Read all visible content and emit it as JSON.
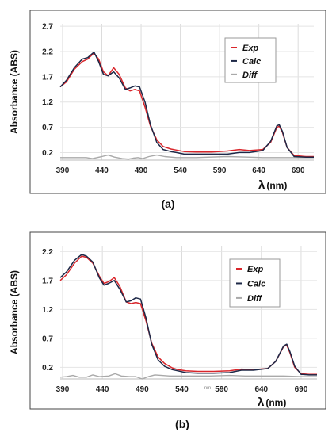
{
  "chart_data": [
    {
      "type": "line",
      "panel_label": "(a)",
      "ylabel": "Absorbance  (ABS)",
      "xlabel_symbol": "λ",
      "xlabel_unit": "(nm)",
      "x_ticks": [
        390,
        440,
        490,
        540,
        590,
        640,
        690
      ],
      "y_ticks": [
        "0.2",
        "0.7",
        "1.2",
        "1.7",
        "2.2",
        "2.7"
      ],
      "xlim": [
        387,
        710
      ],
      "ylim": [
        0.05,
        2.75
      ],
      "grid": true,
      "legend_position": "top-right",
      "extra_axis_text": "",
      "series": [
        {
          "name": "Exp",
          "color": "#d9262b",
          "points": [
            [
              387,
              1.5
            ],
            [
              395,
              1.6
            ],
            [
              405,
              1.85
            ],
            [
              415,
              2.0
            ],
            [
              422,
              2.05
            ],
            [
              430,
              2.17
            ],
            [
              436,
              2.05
            ],
            [
              442,
              1.8
            ],
            [
              448,
              1.72
            ],
            [
              455,
              1.88
            ],
            [
              462,
              1.75
            ],
            [
              470,
              1.48
            ],
            [
              476,
              1.42
            ],
            [
              482,
              1.45
            ],
            [
              488,
              1.42
            ],
            [
              495,
              1.1
            ],
            [
              502,
              0.72
            ],
            [
              510,
              0.45
            ],
            [
              518,
              0.32
            ],
            [
              528,
              0.27
            ],
            [
              535,
              0.25
            ],
            [
              545,
              0.22
            ],
            [
              560,
              0.21
            ],
            [
              580,
              0.21
            ],
            [
              600,
              0.23
            ],
            [
              615,
              0.26
            ],
            [
              628,
              0.24
            ],
            [
              645,
              0.26
            ],
            [
              655,
              0.4
            ],
            [
              663,
              0.7
            ],
            [
              666,
              0.72
            ],
            [
              670,
              0.6
            ],
            [
              676,
              0.3
            ],
            [
              685,
              0.14
            ],
            [
              700,
              0.12
            ],
            [
              710,
              0.12
            ]
          ]
        },
        {
          "name": "Calc",
          "color": "#1d2847",
          "points": [
            [
              387,
              1.5
            ],
            [
              395,
              1.63
            ],
            [
              405,
              1.88
            ],
            [
              415,
              2.05
            ],
            [
              422,
              2.08
            ],
            [
              430,
              2.19
            ],
            [
              436,
              2.0
            ],
            [
              442,
              1.75
            ],
            [
              448,
              1.72
            ],
            [
              455,
              1.8
            ],
            [
              462,
              1.68
            ],
            [
              470,
              1.45
            ],
            [
              476,
              1.48
            ],
            [
              482,
              1.52
            ],
            [
              488,
              1.5
            ],
            [
              495,
              1.2
            ],
            [
              502,
              0.75
            ],
            [
              510,
              0.4
            ],
            [
              518,
              0.26
            ],
            [
              528,
              0.22
            ],
            [
              535,
              0.2
            ],
            [
              545,
              0.17
            ],
            [
              560,
              0.17
            ],
            [
              580,
              0.17
            ],
            [
              600,
              0.17
            ],
            [
              615,
              0.2
            ],
            [
              628,
              0.2
            ],
            [
              645,
              0.24
            ],
            [
              655,
              0.42
            ],
            [
              663,
              0.73
            ],
            [
              666,
              0.75
            ],
            [
              670,
              0.62
            ],
            [
              676,
              0.3
            ],
            [
              685,
              0.12
            ],
            [
              700,
              0.11
            ],
            [
              710,
              0.11
            ]
          ]
        },
        {
          "name": "Diff",
          "color": "#a9a9a9",
          "points": [
            [
              387,
              0.1
            ],
            [
              420,
              0.1
            ],
            [
              428,
              0.08
            ],
            [
              440,
              0.12
            ],
            [
              448,
              0.15
            ],
            [
              456,
              0.11
            ],
            [
              466,
              0.08
            ],
            [
              474,
              0.07
            ],
            [
              480,
              0.09
            ],
            [
              486,
              0.1
            ],
            [
              492,
              0.08
            ],
            [
              500,
              0.12
            ],
            [
              510,
              0.15
            ],
            [
              520,
              0.12
            ],
            [
              535,
              0.1
            ],
            [
              560,
              0.1
            ],
            [
              600,
              0.12
            ],
            [
              625,
              0.11
            ],
            [
              645,
              0.1
            ],
            [
              662,
              0.1
            ],
            [
              668,
              0.1
            ],
            [
              690,
              0.1
            ],
            [
              710,
              0.1
            ]
          ]
        }
      ]
    },
    {
      "type": "line",
      "panel_label": "(b)",
      "ylabel": "Absorbance  (ABS)",
      "xlabel_symbol": "λ",
      "xlabel_unit": "(nm)",
      "x_ticks": [
        390,
        440,
        490,
        540,
        590,
        640,
        690
      ],
      "y_ticks": [
        "0.2",
        "0.7",
        "1.2",
        "1.7",
        "2.2"
      ],
      "xlim": [
        387,
        710
      ],
      "ylim": [
        0.0,
        2.3
      ],
      "grid": true,
      "legend_position": "top-right",
      "extra_axis_text": "nm",
      "series": [
        {
          "name": "Exp",
          "color": "#d9262b",
          "points": [
            [
              387,
              1.7
            ],
            [
              395,
              1.8
            ],
            [
              405,
              2.0
            ],
            [
              414,
              2.12
            ],
            [
              420,
              2.1
            ],
            [
              428,
              2.0
            ],
            [
              436,
              1.78
            ],
            [
              442,
              1.65
            ],
            [
              448,
              1.68
            ],
            [
              455,
              1.75
            ],
            [
              462,
              1.6
            ],
            [
              470,
              1.33
            ],
            [
              476,
              1.3
            ],
            [
              482,
              1.32
            ],
            [
              488,
              1.3
            ],
            [
              495,
              1.0
            ],
            [
              502,
              0.62
            ],
            [
              510,
              0.38
            ],
            [
              518,
              0.27
            ],
            [
              528,
              0.19
            ],
            [
              535,
              0.16
            ],
            [
              545,
              0.14
            ],
            [
              560,
              0.13
            ],
            [
              580,
              0.13
            ],
            [
              600,
              0.14
            ],
            [
              615,
              0.17
            ],
            [
              630,
              0.16
            ],
            [
              648,
              0.18
            ],
            [
              658,
              0.3
            ],
            [
              668,
              0.56
            ],
            [
              672,
              0.58
            ],
            [
              676,
              0.45
            ],
            [
              682,
              0.2
            ],
            [
              690,
              0.09
            ],
            [
              700,
              0.08
            ],
            [
              710,
              0.08
            ]
          ]
        },
        {
          "name": "Calc",
          "color": "#1d2847",
          "points": [
            [
              387,
              1.75
            ],
            [
              395,
              1.85
            ],
            [
              405,
              2.05
            ],
            [
              414,
              2.15
            ],
            [
              420,
              2.12
            ],
            [
              428,
              2.02
            ],
            [
              436,
              1.75
            ],
            [
              442,
              1.62
            ],
            [
              448,
              1.65
            ],
            [
              455,
              1.7
            ],
            [
              462,
              1.55
            ],
            [
              470,
              1.33
            ],
            [
              476,
              1.35
            ],
            [
              482,
              1.4
            ],
            [
              488,
              1.38
            ],
            [
              495,
              1.05
            ],
            [
              502,
              0.6
            ],
            [
              510,
              0.33
            ],
            [
              518,
              0.22
            ],
            [
              528,
              0.16
            ],
            [
              535,
              0.14
            ],
            [
              545,
              0.11
            ],
            [
              560,
              0.1
            ],
            [
              580,
              0.1
            ],
            [
              600,
              0.11
            ],
            [
              615,
              0.15
            ],
            [
              630,
              0.15
            ],
            [
              648,
              0.18
            ],
            [
              658,
              0.3
            ],
            [
              668,
              0.57
            ],
            [
              672,
              0.6
            ],
            [
              676,
              0.47
            ],
            [
              682,
              0.22
            ],
            [
              690,
              0.08
            ],
            [
              700,
              0.07
            ],
            [
              710,
              0.07
            ]
          ]
        },
        {
          "name": "Diff",
          "color": "#a9a9a9",
          "points": [
            [
              387,
              0.03
            ],
            [
              395,
              0.04
            ],
            [
              403,
              0.06
            ],
            [
              411,
              0.03
            ],
            [
              420,
              0.03
            ],
            [
              428,
              0.07
            ],
            [
              436,
              0.04
            ],
            [
              448,
              0.05
            ],
            [
              456,
              0.09
            ],
            [
              464,
              0.05
            ],
            [
              474,
              0.04
            ],
            [
              482,
              0.04
            ],
            [
              490,
              0.0
            ],
            [
              498,
              0.04
            ],
            [
              506,
              0.07
            ],
            [
              515,
              0.06
            ],
            [
              525,
              0.05
            ],
            [
              545,
              0.05
            ],
            [
              575,
              0.05
            ],
            [
              600,
              0.06
            ],
            [
              620,
              0.05
            ],
            [
              645,
              0.05
            ],
            [
              668,
              0.05
            ],
            [
              690,
              0.04
            ],
            [
              710,
              0.04
            ]
          ]
        }
      ]
    }
  ]
}
